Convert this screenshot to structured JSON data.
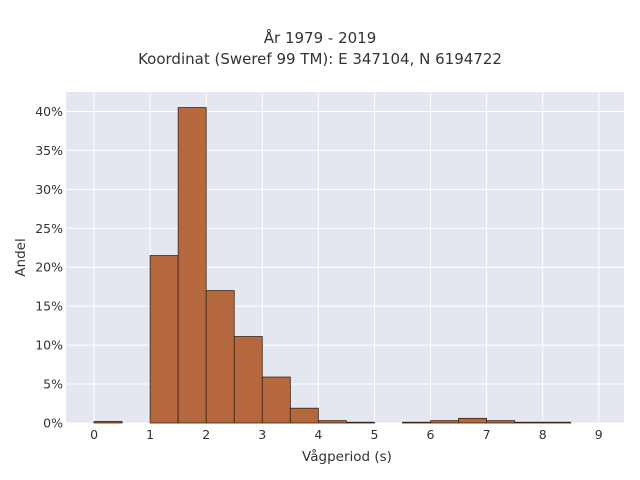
{
  "chart_data": {
    "type": "bar",
    "title": "År 1979 - 2019",
    "subtitle": "Koordinat (Sweref 99 TM): E 347104, N 6194722",
    "xlabel": "Vågperiod (s)",
    "ylabel": "Andel",
    "xlim": [
      -0.5,
      9.45
    ],
    "ylim": [
      0,
      0.425
    ],
    "x_ticks": [
      0,
      1,
      2,
      3,
      4,
      5,
      6,
      7,
      8,
      9
    ],
    "y_ticks": [
      0,
      0.05,
      0.1,
      0.15,
      0.2,
      0.25,
      0.3,
      0.35,
      0.4
    ],
    "y_tick_labels": [
      "0%",
      "5%",
      "10%",
      "15%",
      "20%",
      "25%",
      "30%",
      "35%",
      "40%"
    ],
    "bin_width": 0.5,
    "bins": [
      {
        "start": 0.0,
        "value": 0.002
      },
      {
        "start": 1.0,
        "value": 0.215
      },
      {
        "start": 1.5,
        "value": 0.405
      },
      {
        "start": 2.0,
        "value": 0.17
      },
      {
        "start": 2.5,
        "value": 0.111
      },
      {
        "start": 3.0,
        "value": 0.059
      },
      {
        "start": 3.5,
        "value": 0.019
      },
      {
        "start": 4.0,
        "value": 0.003
      },
      {
        "start": 4.5,
        "value": 0.001
      },
      {
        "start": 5.5,
        "value": 0.001
      },
      {
        "start": 6.0,
        "value": 0.003
      },
      {
        "start": 6.5,
        "value": 0.006
      },
      {
        "start": 7.0,
        "value": 0.003
      },
      {
        "start": 7.5,
        "value": 0.001
      },
      {
        "start": 8.0,
        "value": 0.001
      }
    ],
    "grid": true,
    "colors": {
      "bar_fill": "#b5683e",
      "bar_stroke": "#3a2316",
      "plot_bg": "#e5e7f0",
      "grid": "#ffffff"
    }
  }
}
